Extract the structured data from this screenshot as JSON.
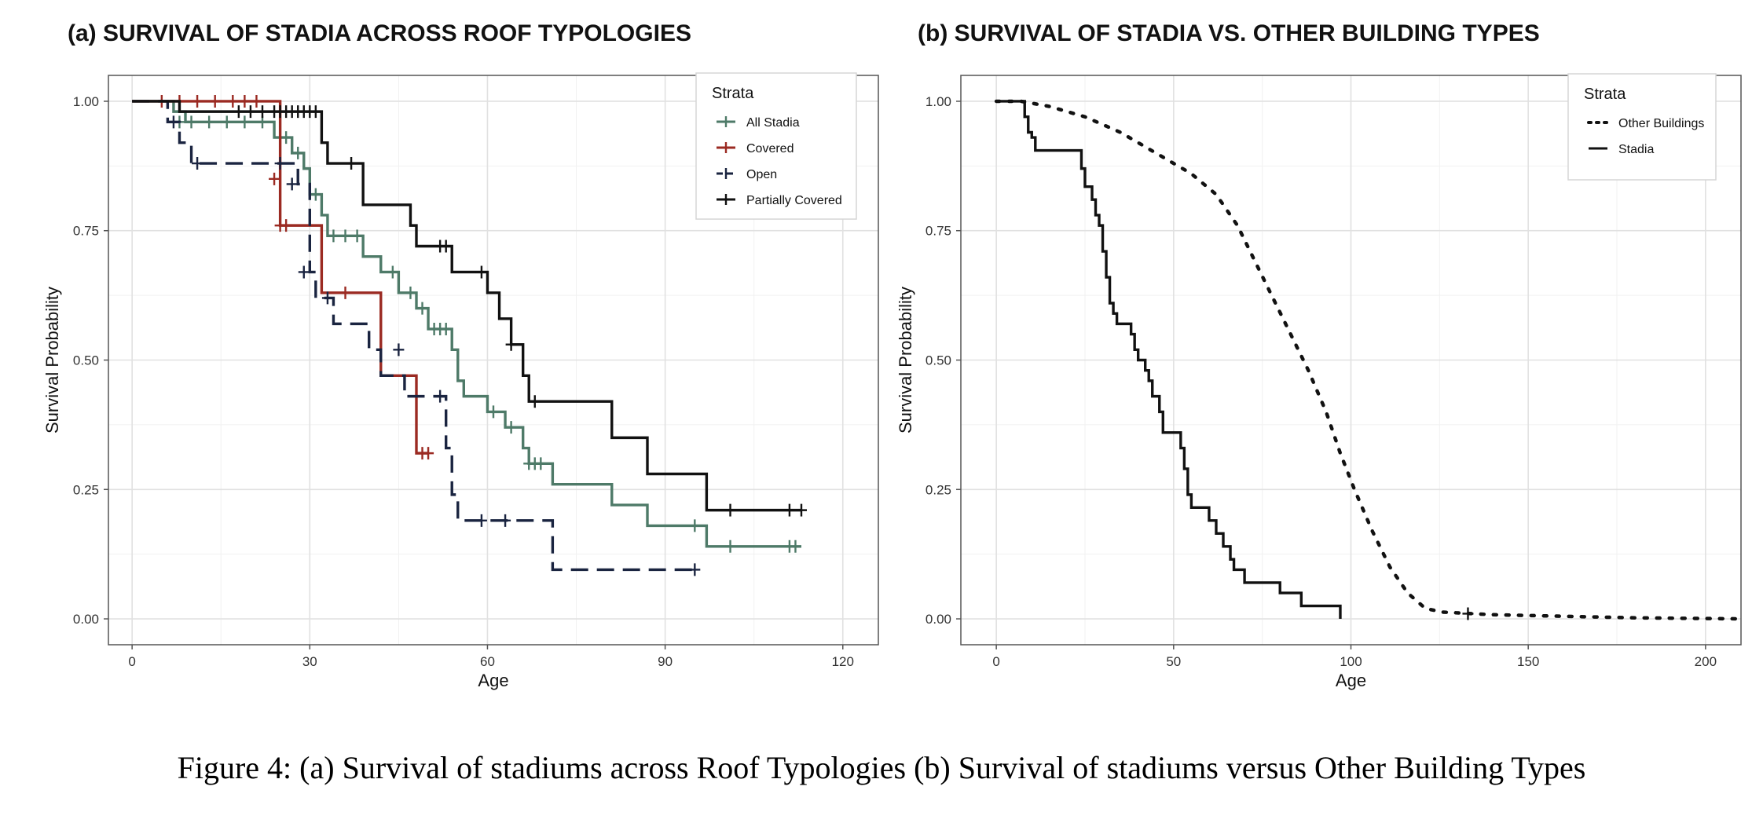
{
  "caption": "Figure 4: (a) Survival of stadiums across Roof Typologies (b) Survival of stadiums versus Other Building Types",
  "chart_data": [
    {
      "type": "line",
      "subtype": "kaplan-meier step",
      "title": "(a) SURVIVAL OF STADIA ACROSS ROOF TYPOLOGIES",
      "xlabel": "Age",
      "ylabel": "Survival Probability",
      "xlim": [
        -4,
        126
      ],
      "ylim": [
        -0.05,
        1.05
      ],
      "xticks": [
        0,
        30,
        60,
        90,
        120
      ],
      "xtick_labels": [
        "0",
        "30",
        "60",
        "90",
        "120"
      ],
      "yticks": [
        0,
        0.25,
        0.5,
        0.75,
        1.0
      ],
      "ytick_labels": [
        "0.00",
        "0.25",
        "0.50",
        "0.75",
        "1.00"
      ],
      "grid": true,
      "legend": {
        "title": "Strata",
        "position": "top-right"
      },
      "series": [
        {
          "name": "All Stadia",
          "color": "#4e7a68",
          "dash": "solid",
          "steps": [
            [
              0,
              1.0
            ],
            [
              7,
              0.98
            ],
            [
              9,
              0.96
            ],
            [
              24,
              0.93
            ],
            [
              27,
              0.9
            ],
            [
              29,
              0.87
            ],
            [
              30,
              0.82
            ],
            [
              32,
              0.78
            ],
            [
              33,
              0.74
            ],
            [
              39,
              0.7
            ],
            [
              42,
              0.67
            ],
            [
              45,
              0.63
            ],
            [
              48,
              0.6
            ],
            [
              50,
              0.56
            ],
            [
              54,
              0.52
            ],
            [
              55,
              0.46
            ],
            [
              56,
              0.43
            ],
            [
              60,
              0.4
            ],
            [
              63,
              0.37
            ],
            [
              66,
              0.33
            ],
            [
              67,
              0.3
            ],
            [
              71,
              0.26
            ],
            [
              81,
              0.22
            ],
            [
              87,
              0.18
            ],
            [
              97,
              0.14
            ],
            [
              113,
              0.14
            ]
          ],
          "censor": [
            [
              8,
              0.96
            ],
            [
              10,
              0.96
            ],
            [
              13,
              0.96
            ],
            [
              16,
              0.96
            ],
            [
              19,
              0.96
            ],
            [
              22,
              0.96
            ],
            [
              25,
              0.93
            ],
            [
              26,
              0.93
            ],
            [
              28,
              0.9
            ],
            [
              31,
              0.82
            ],
            [
              34,
              0.74
            ],
            [
              36,
              0.74
            ],
            [
              38,
              0.74
            ],
            [
              44,
              0.67
            ],
            [
              47,
              0.63
            ],
            [
              49,
              0.6
            ],
            [
              51,
              0.56
            ],
            [
              52,
              0.56
            ],
            [
              53,
              0.56
            ],
            [
              61,
              0.4
            ],
            [
              64,
              0.37
            ],
            [
              67,
              0.3
            ],
            [
              68,
              0.3
            ],
            [
              69,
              0.3
            ],
            [
              95,
              0.18
            ],
            [
              101,
              0.14
            ],
            [
              111,
              0.14
            ],
            [
              112,
              0.14
            ]
          ]
        },
        {
          "name": "Covered",
          "color": "#9b2a22",
          "dash": "solid",
          "steps": [
            [
              0,
              1.0
            ],
            [
              24,
              1.0
            ],
            [
              25,
              0.85
            ],
            [
              25,
              0.76
            ],
            [
              30,
              0.76
            ],
            [
              32,
              0.63
            ],
            [
              42,
              0.63
            ],
            [
              42,
              0.47
            ],
            [
              48,
              0.47
            ],
            [
              48,
              0.32
            ],
            [
              50,
              0.32
            ]
          ],
          "censor": [
            [
              5,
              1.0
            ],
            [
              8,
              1.0
            ],
            [
              11,
              1.0
            ],
            [
              14,
              1.0
            ],
            [
              17,
              1.0
            ],
            [
              19,
              1.0
            ],
            [
              21,
              1.0
            ],
            [
              24,
              0.85
            ],
            [
              25,
              0.76
            ],
            [
              26,
              0.76
            ],
            [
              36,
              0.63
            ],
            [
              49,
              0.32
            ],
            [
              50,
              0.32
            ]
          ]
        },
        {
          "name": "Open",
          "color": "#1a2440",
          "dash": "dashed",
          "steps": [
            [
              0,
              1.0
            ],
            [
              6,
              0.96
            ],
            [
              8,
              0.92
            ],
            [
              10,
              0.88
            ],
            [
              28,
              0.84
            ],
            [
              30,
              0.67
            ],
            [
              31,
              0.62
            ],
            [
              34,
              0.57
            ],
            [
              40,
              0.52
            ],
            [
              42,
              0.47
            ],
            [
              46,
              0.43
            ],
            [
              53,
              0.33
            ],
            [
              54,
              0.24
            ],
            [
              55,
              0.19
            ],
            [
              71,
              0.19
            ],
            [
              71,
              0.095
            ],
            [
              95,
              0.095
            ]
          ],
          "censor": [
            [
              7,
              0.96
            ],
            [
              11,
              0.88
            ],
            [
              25,
              0.88
            ],
            [
              27,
              0.84
            ],
            [
              29,
              0.67
            ],
            [
              33,
              0.62
            ],
            [
              45,
              0.52
            ],
            [
              52,
              0.43
            ],
            [
              59,
              0.19
            ],
            [
              63,
              0.19
            ],
            [
              95,
              0.095
            ]
          ]
        },
        {
          "name": "Partially Covered",
          "color": "#111111",
          "dash": "solid",
          "steps": [
            [
              0,
              1.0
            ],
            [
              8,
              0.98
            ],
            [
              32,
              0.92
            ],
            [
              33,
              0.88
            ],
            [
              39,
              0.8
            ],
            [
              47,
              0.76
            ],
            [
              48,
              0.72
            ],
            [
              54,
              0.67
            ],
            [
              60,
              0.63
            ],
            [
              62,
              0.58
            ],
            [
              64,
              0.53
            ],
            [
              66,
              0.47
            ],
            [
              67,
              0.42
            ],
            [
              81,
              0.35
            ],
            [
              87,
              0.28
            ],
            [
              97,
              0.21
            ],
            [
              113,
              0.21
            ]
          ],
          "censor": [
            [
              18,
              0.98
            ],
            [
              20,
              0.98
            ],
            [
              22,
              0.98
            ],
            [
              24,
              0.98
            ],
            [
              25,
              0.98
            ],
            [
              26,
              0.98
            ],
            [
              27,
              0.98
            ],
            [
              28,
              0.98
            ],
            [
              29,
              0.98
            ],
            [
              30,
              0.98
            ],
            [
              31,
              0.98
            ],
            [
              37,
              0.88
            ],
            [
              52,
              0.72
            ],
            [
              53,
              0.72
            ],
            [
              59,
              0.67
            ],
            [
              64,
              0.53
            ],
            [
              68,
              0.42
            ],
            [
              101,
              0.21
            ],
            [
              111,
              0.21
            ],
            [
              113,
              0.21
            ]
          ]
        }
      ]
    },
    {
      "type": "line",
      "subtype": "kaplan-meier step",
      "title": "(b) SURVIVAL OF STADIA VS. OTHER BUILDING TYPES",
      "xlabel": "Age",
      "ylabel": "Survival Probability",
      "xlim": [
        -10,
        210
      ],
      "ylim": [
        -0.05,
        1.05
      ],
      "xticks": [
        0,
        50,
        100,
        150,
        200
      ],
      "xtick_labels": [
        "0",
        "50",
        "100",
        "150",
        "200"
      ],
      "yticks": [
        0,
        0.25,
        0.5,
        0.75,
        1.0
      ],
      "ytick_labels": [
        "0.00",
        "0.25",
        "0.50",
        "0.75",
        "1.00"
      ],
      "grid": true,
      "legend": {
        "title": "Strata",
        "position": "top-right"
      },
      "series": [
        {
          "name": "Other Buildings",
          "color": "#111111",
          "dash": "dotted",
          "points": [
            [
              0,
              1.0
            ],
            [
              7,
              1.0
            ],
            [
              15,
              0.99
            ],
            [
              25,
              0.97
            ],
            [
              35,
              0.94
            ],
            [
              45,
              0.9
            ],
            [
              55,
              0.86
            ],
            [
              62,
              0.82
            ],
            [
              68,
              0.76
            ],
            [
              73,
              0.69
            ],
            [
              78,
              0.62
            ],
            [
              83,
              0.55
            ],
            [
              88,
              0.48
            ],
            [
              93,
              0.4
            ],
            [
              97,
              0.32
            ],
            [
              101,
              0.25
            ],
            [
              106,
              0.17
            ],
            [
              111,
              0.1
            ],
            [
              116,
              0.05
            ],
            [
              121,
              0.02
            ],
            [
              126,
              0.013
            ],
            [
              140,
              0.008
            ],
            [
              160,
              0.005
            ],
            [
              180,
              0.002
            ],
            [
              210,
              0.0
            ]
          ],
          "censor": [
            [
              133,
              0.01
            ]
          ]
        },
        {
          "name": "Stadia",
          "color": "#111111",
          "dash": "solid",
          "steps": [
            [
              0,
              1.0
            ],
            [
              7,
              1.0
            ],
            [
              8,
              0.97
            ],
            [
              9,
              0.94
            ],
            [
              10,
              0.93
            ],
            [
              11,
              0.905
            ],
            [
              24,
              0.87
            ],
            [
              25,
              0.835
            ],
            [
              27,
              0.81
            ],
            [
              28,
              0.78
            ],
            [
              29,
              0.76
            ],
            [
              30,
              0.71
            ],
            [
              31,
              0.66
            ],
            [
              32,
              0.61
            ],
            [
              33,
              0.59
            ],
            [
              34,
              0.57
            ],
            [
              38,
              0.55
            ],
            [
              39,
              0.52
            ],
            [
              40,
              0.5
            ],
            [
              42,
              0.48
            ],
            [
              43,
              0.46
            ],
            [
              44,
              0.43
            ],
            [
              46,
              0.4
            ],
            [
              47,
              0.36
            ],
            [
              52,
              0.33
            ],
            [
              53,
              0.29
            ],
            [
              54,
              0.24
            ],
            [
              55,
              0.215
            ],
            [
              60,
              0.19
            ],
            [
              62,
              0.165
            ],
            [
              64,
              0.14
            ],
            [
              66,
              0.115
            ],
            [
              67,
              0.095
            ],
            [
              70,
              0.07
            ],
            [
              80,
              0.05
            ],
            [
              86,
              0.025
            ],
            [
              97,
              0.0
            ]
          ],
          "censor": []
        }
      ]
    }
  ]
}
